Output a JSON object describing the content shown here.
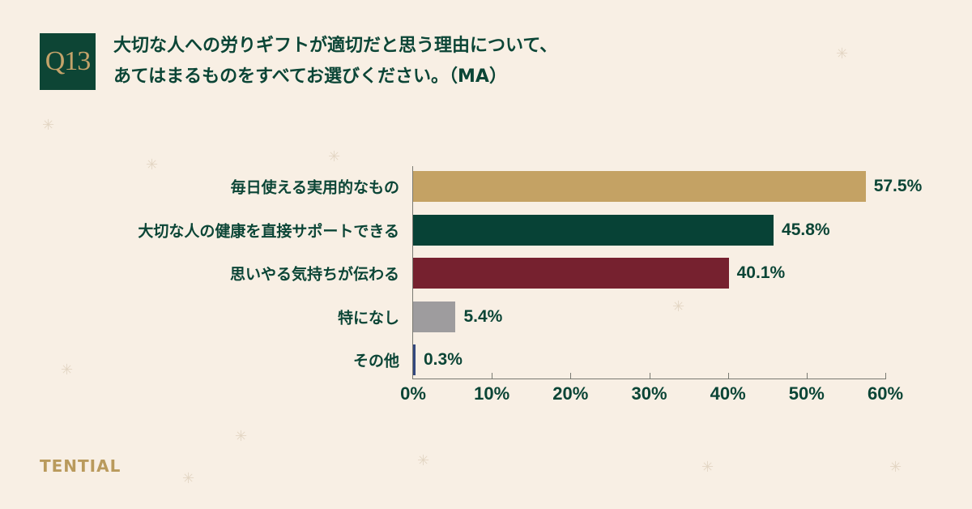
{
  "question": {
    "number": "Q13",
    "line1": "大切な人への労りギフトが適切だと思う理由について、",
    "line2": "あてはまるものをすべてお選びください。（MA）"
  },
  "brand": "TENTIAL",
  "colors": {
    "background": "#f8efe4",
    "primary_green": "#0d4535",
    "gold": "#c4a36a"
  },
  "chart_data": {
    "type": "bar",
    "orientation": "horizontal",
    "title": "大切な人への労りギフトが適切だと思う理由について、あてはまるものをすべてお選びください。（MA）",
    "categories": [
      "毎日使える実用的なもの",
      "大切な人の健康を直接サポートできる",
      "思いやる気持ちが伝わる",
      "特になし",
      "その他"
    ],
    "values": [
      57.5,
      45.8,
      40.1,
      5.4,
      0.3
    ],
    "value_labels": [
      "57.5%",
      "45.8%",
      "40.1%",
      "5.4%",
      "0.3%"
    ],
    "bar_colors": [
      "#c4a264",
      "#074236",
      "#76212f",
      "#9e9c9e",
      "#34487e"
    ],
    "xlabel": "",
    "ylabel": "",
    "xlim": [
      0,
      60
    ],
    "xticks": [
      "0%",
      "10%",
      "20%",
      "30%",
      "40%",
      "50%",
      "60%"
    ],
    "grid": false,
    "legend": "none"
  }
}
